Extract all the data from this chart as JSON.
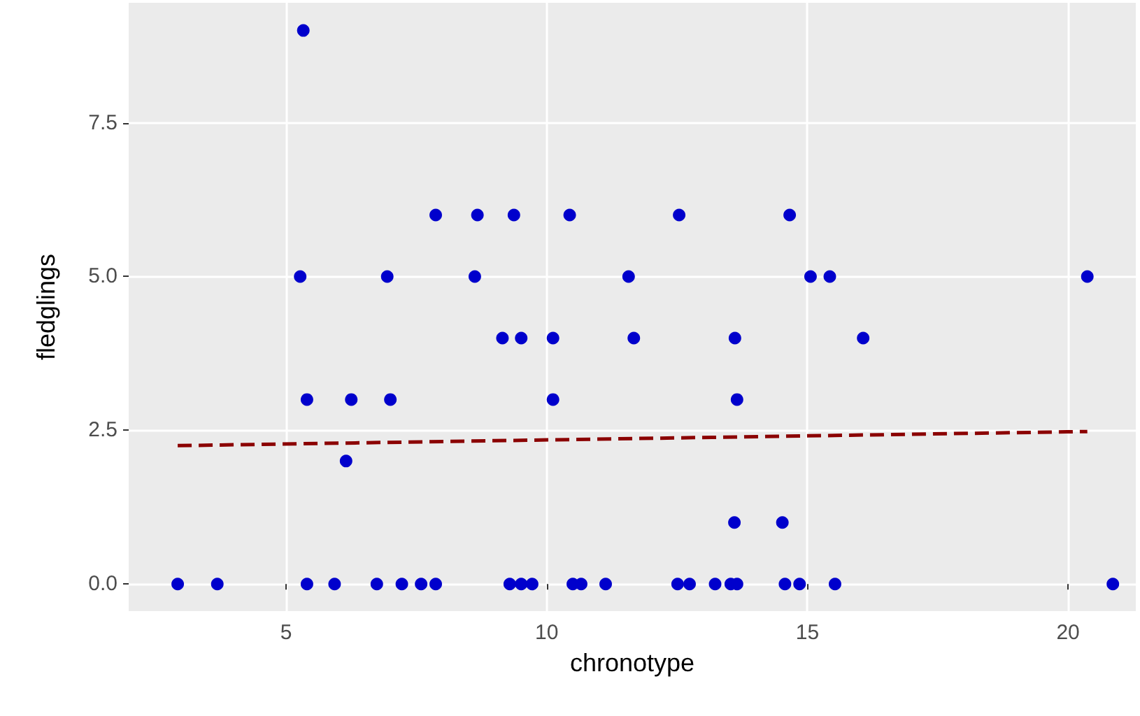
{
  "chart_data": {
    "type": "scatter",
    "xlabel": "chronotype",
    "ylabel": "fledglings",
    "xlim": [
      1.98,
      21.3
    ],
    "ylim": [
      -0.44,
      9.45
    ],
    "xticks": [
      5,
      10,
      15,
      20
    ],
    "yticks": [
      {
        "value": 0,
        "label": "0.0"
      },
      {
        "value": 2.5,
        "label": "2.5"
      },
      {
        "value": 5,
        "label": "5.0"
      },
      {
        "value": 7.5,
        "label": "7.5"
      }
    ],
    "grid": true,
    "marker": "circle",
    "series": [
      {
        "color": "#0000cc",
        "x": [
          2.92,
          3.68,
          5.4,
          5.93,
          6.74,
          7.22,
          7.59,
          7.87,
          9.29,
          9.51,
          9.72,
          10.5,
          10.66,
          11.13,
          12.51,
          12.74,
          13.23,
          13.53,
          13.65,
          14.57,
          14.85,
          15.53,
          20.86,
          13.6,
          14.52,
          6.15,
          5.4,
          6.25,
          7.0,
          10.12,
          13.65,
          9.15,
          9.51,
          10.12,
          11.67,
          13.61,
          16.07,
          5.27,
          6.94,
          8.62,
          11.57,
          15.06,
          15.43,
          20.37,
          7.87,
          8.67,
          9.37,
          10.44,
          12.54,
          14.66,
          5.33
        ],
        "values": [
          0,
          0,
          0,
          0,
          0,
          0,
          0,
          0,
          0,
          0,
          0,
          0,
          0,
          0,
          0,
          0,
          0,
          0,
          0,
          0,
          0,
          0,
          0,
          1,
          1,
          2,
          3,
          3,
          3,
          3,
          3,
          4,
          4,
          4,
          4,
          4,
          4,
          5,
          5,
          5,
          5,
          5,
          5,
          5,
          6,
          6,
          6,
          6,
          6,
          6,
          9
        ]
      },
      {
        "type": "line",
        "color": "#8b0000",
        "line_style": "dashed",
        "marker": "none",
        "x": [
          2.92,
          20.37
        ],
        "values": [
          2.25,
          2.48
        ]
      }
    ]
  }
}
